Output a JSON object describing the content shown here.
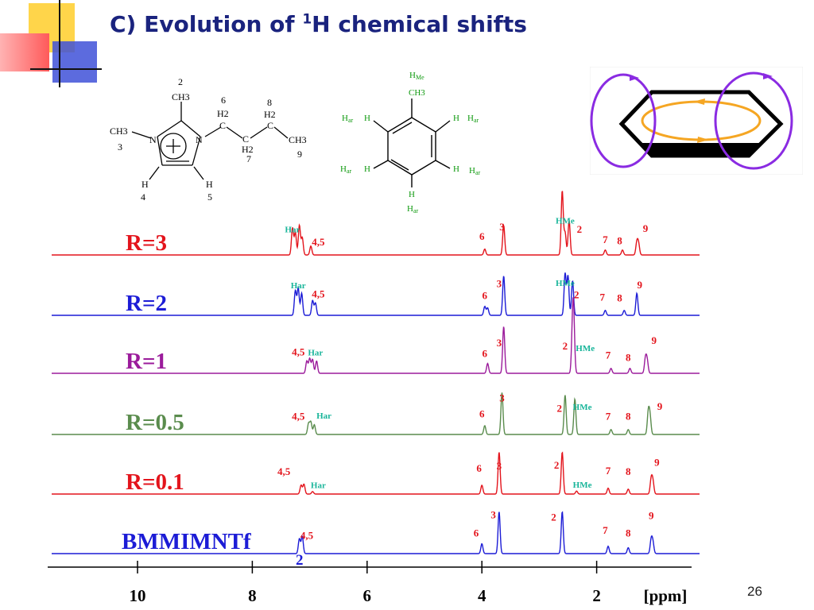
{
  "slide": {
    "title_prefix": "C) Evolution of ",
    "title_sup": "1",
    "title_suffix": "H chemical shifts",
    "page_number": "26"
  },
  "colors": {
    "title": "#1a237e",
    "deco_yellow": "#ffd54a",
    "deco_blue": "#3f51d8",
    "deco_red": "#ff5a5a",
    "ring_current": "#8a2be2",
    "ring_inner": "#f5a623",
    "label_red": "#e3141c",
    "label_teal": "#19b59a",
    "toluene_green": "#109a10"
  },
  "bmim_structure": {
    "atoms": {
      "c2": "CH3",
      "c2_num": "2",
      "c6": "6",
      "c6_h": "H2",
      "c6_c": "C",
      "c8": "8",
      "c8_h": "H2",
      "c8_c": "C",
      "c7_c": "C",
      "c7_h": "H2",
      "c7": "7",
      "c9": "CH3",
      "c9_num": "9",
      "c3": "CH3",
      "c3_num": "3",
      "n_left": "N",
      "n_right": "N",
      "h4": "H",
      "h4_num": "4",
      "h5": "H",
      "h5_num": "5"
    }
  },
  "toluene_structure": {
    "atoms": {
      "hme": "H",
      "hme_sub": "Me",
      "ch3": "CH3",
      "h_tl": "H",
      "h_tr": "H",
      "h_bl": "H",
      "h_br": "H",
      "h_b": "H",
      "har": "H",
      "har_sub": "ar"
    }
  },
  "chart_data": {
    "type": "line",
    "xlabel": "[ppm]",
    "x_ticks": [
      "10",
      "8",
      "6",
      "4",
      "2"
    ],
    "x_tick_values": [
      10,
      8,
      6,
      4,
      2
    ],
    "x_reversed": true,
    "series": [
      {
        "name": "R=3",
        "color": "#e3141c",
        "peaks": [
          [
            7.3,
            0.55
          ],
          [
            7.25,
            0.45
          ],
          [
            7.18,
            0.6
          ],
          [
            7.13,
            0.35
          ],
          [
            6.98,
            0.18
          ],
          [
            3.95,
            0.12
          ],
          [
            3.62,
            0.6
          ],
          [
            2.6,
            1.3
          ],
          [
            2.55,
            0.45
          ],
          [
            2.48,
            0.7
          ],
          [
            1.85,
            0.1
          ],
          [
            1.55,
            0.1
          ],
          [
            1.3,
            0.25
          ],
          [
            1.27,
            0.22
          ]
        ],
        "labels": [
          {
            "text": "Har",
            "x": 7.3,
            "h": 0.46,
            "color": "#19b59a",
            "size": "small"
          },
          {
            "text": "4,5",
            "x": 6.85,
            "h": 0.19,
            "color": "#e3141c"
          },
          {
            "text": "6",
            "x": 4.0,
            "h": 0.31,
            "color": "#e3141c"
          },
          {
            "text": "3",
            "x": 3.65,
            "h": 0.5,
            "color": "#e3141c"
          },
          {
            "text": "HMe",
            "x": 2.55,
            "h": 0.64,
            "color": "#19b59a",
            "size": "small"
          },
          {
            "text": "2",
            "x": 2.3,
            "h": 0.45,
            "color": "#e3141c"
          },
          {
            "text": "7",
            "x": 1.85,
            "h": 0.24,
            "color": "#e3141c"
          },
          {
            "text": "8",
            "x": 1.6,
            "h": 0.22,
            "color": "#e3141c"
          },
          {
            "text": "9",
            "x": 1.15,
            "h": 0.47,
            "color": "#e3141c"
          }
        ],
        "series_label": "R=3"
      },
      {
        "name": "R=2",
        "color": "#1c1cd6",
        "peaks": [
          [
            7.25,
            0.5
          ],
          [
            7.2,
            0.55
          ],
          [
            7.14,
            0.45
          ],
          [
            6.95,
            0.3
          ],
          [
            6.9,
            0.25
          ],
          [
            3.95,
            0.18
          ],
          [
            3.9,
            0.15
          ],
          [
            3.62,
            0.8
          ],
          [
            2.55,
            0.85
          ],
          [
            2.5,
            0.8
          ],
          [
            2.42,
            0.7
          ],
          [
            1.85,
            0.1
          ],
          [
            1.52,
            0.1
          ],
          [
            1.3,
            0.45
          ]
        ],
        "labels": [
          {
            "text": "Har",
            "x": 7.2,
            "h": 0.55,
            "color": "#19b59a",
            "size": "small"
          },
          {
            "text": "4,5",
            "x": 6.85,
            "h": 0.36,
            "color": "#e3141c"
          },
          {
            "text": "6",
            "x": 3.95,
            "h": 0.33,
            "color": "#e3141c"
          },
          {
            "text": "3",
            "x": 3.7,
            "h": 0.57,
            "color": "#e3141c"
          },
          {
            "text": "HMe",
            "x": 2.55,
            "h": 0.6,
            "color": "#19b59a",
            "size": "small"
          },
          {
            "text": "2",
            "x": 2.35,
            "h": 0.35,
            "color": "#e3141c"
          },
          {
            "text": "7",
            "x": 1.9,
            "h": 0.3,
            "color": "#e3141c"
          },
          {
            "text": "8",
            "x": 1.6,
            "h": 0.28,
            "color": "#e3141c"
          },
          {
            "text": "9",
            "x": 1.25,
            "h": 0.55,
            "color": "#e3141c"
          }
        ],
        "series_label": "R=2"
      },
      {
        "name": "R=1",
        "color": "#9b1b9b",
        "peaks": [
          [
            7.05,
            0.25
          ],
          [
            7.0,
            0.3
          ],
          [
            6.95,
            0.28
          ],
          [
            6.88,
            0.25
          ],
          [
            3.9,
            0.2
          ],
          [
            3.62,
            0.95
          ],
          [
            2.42,
            0.85
          ],
          [
            2.4,
            0.95
          ],
          [
            1.75,
            0.1
          ],
          [
            1.42,
            0.1
          ],
          [
            1.15,
            0.3
          ],
          [
            1.12,
            0.25
          ]
        ],
        "labels": [
          {
            "text": "4,5",
            "x": 7.2,
            "h": 0.36,
            "color": "#e3141c"
          },
          {
            "text": "Har",
            "x": 6.9,
            "h": 0.36,
            "color": "#19b59a",
            "size": "small"
          },
          {
            "text": "6",
            "x": 3.95,
            "h": 0.33,
            "color": "#e3141c"
          },
          {
            "text": "3",
            "x": 3.7,
            "h": 0.55,
            "color": "#e3141c"
          },
          {
            "text": "2",
            "x": 2.55,
            "h": 0.48,
            "color": "#e3141c"
          },
          {
            "text": "HMe",
            "x": 2.2,
            "h": 0.45,
            "color": "#19b59a",
            "size": "small"
          },
          {
            "text": "7",
            "x": 1.8,
            "h": 0.3,
            "color": "#e3141c"
          },
          {
            "text": "8",
            "x": 1.45,
            "h": 0.25,
            "color": "#e3141c"
          },
          {
            "text": "9",
            "x": 1.0,
            "h": 0.6,
            "color": "#e3141c"
          }
        ],
        "series_label": "R=1"
      },
      {
        "name": "R=0.5",
        "color": "#5a8c4d",
        "peaks": [
          [
            7.02,
            0.22
          ],
          [
            6.98,
            0.25
          ],
          [
            6.92,
            0.2
          ],
          [
            3.95,
            0.18
          ],
          [
            3.65,
            0.85
          ],
          [
            2.55,
            0.8
          ],
          [
            2.38,
            0.72
          ],
          [
            1.75,
            0.1
          ],
          [
            1.45,
            0.1
          ],
          [
            1.1,
            0.45
          ],
          [
            1.07,
            0.35
          ]
        ],
        "labels": [
          {
            "text": "4,5",
            "x": 7.2,
            "h": 0.3,
            "color": "#e3141c"
          },
          {
            "text": "Har",
            "x": 6.75,
            "h": 0.32,
            "color": "#19b59a",
            "size": "small"
          },
          {
            "text": "6",
            "x": 4.0,
            "h": 0.35,
            "color": "#e3141c"
          },
          {
            "text": "3",
            "x": 3.65,
            "h": 0.67,
            "color": "#e3141c"
          },
          {
            "text": "2",
            "x": 2.65,
            "h": 0.46,
            "color": "#e3141c"
          },
          {
            "text": "HMe",
            "x": 2.25,
            "h": 0.5,
            "color": "#19b59a",
            "size": "small"
          },
          {
            "text": "7",
            "x": 1.8,
            "h": 0.3,
            "color": "#e3141c"
          },
          {
            "text": "8",
            "x": 1.45,
            "h": 0.3,
            "color": "#e3141c"
          },
          {
            "text": "9",
            "x": 0.9,
            "h": 0.5,
            "color": "#e3141c"
          }
        ],
        "series_label": "R=0.5"
      },
      {
        "name": "R=0.1",
        "color": "#e3141c",
        "peaks": [
          [
            7.15,
            0.18
          ],
          [
            7.1,
            0.2
          ],
          [
            6.95,
            0.05
          ],
          [
            4.0,
            0.18
          ],
          [
            3.7,
            0.85
          ],
          [
            2.6,
            0.85
          ],
          [
            2.35,
            0.06
          ],
          [
            1.8,
            0.12
          ],
          [
            1.45,
            0.1
          ],
          [
            1.05,
            0.3
          ],
          [
            1.02,
            0.25
          ]
        ],
        "labels": [
          {
            "text": "4,5",
            "x": 7.45,
            "h": 0.39,
            "color": "#e3141c"
          },
          {
            "text": "Har",
            "x": 6.85,
            "h": 0.12,
            "color": "#19b59a",
            "size": "small"
          },
          {
            "text": "6",
            "x": 4.05,
            "h": 0.45,
            "color": "#e3141c"
          },
          {
            "text": "3",
            "x": 3.7,
            "h": 0.5,
            "color": "#e3141c"
          },
          {
            "text": "2",
            "x": 2.7,
            "h": 0.52,
            "color": "#e3141c"
          },
          {
            "text": "HMe",
            "x": 2.25,
            "h": 0.13,
            "color": "#19b59a",
            "size": "small"
          },
          {
            "text": "7",
            "x": 1.8,
            "h": 0.4,
            "color": "#e3141c"
          },
          {
            "text": "8",
            "x": 1.45,
            "h": 0.39,
            "color": "#e3141c"
          },
          {
            "text": "9",
            "x": 0.95,
            "h": 0.57,
            "color": "#e3141c"
          }
        ],
        "series_label": "R=0.1"
      },
      {
        "name": "BMMIMNTf2",
        "color": "#1c1cd6",
        "peaks": [
          [
            7.18,
            0.3
          ],
          [
            7.13,
            0.35
          ],
          [
            4.0,
            0.2
          ],
          [
            3.7,
            0.85
          ],
          [
            2.6,
            0.85
          ],
          [
            1.8,
            0.15
          ],
          [
            1.45,
            0.12
          ],
          [
            1.05,
            0.28
          ],
          [
            1.02,
            0.22
          ]
        ],
        "labels": [
          {
            "text": "4,5",
            "x": 7.05,
            "h": 0.3,
            "color": "#e3141c"
          },
          {
            "text": "6",
            "x": 4.1,
            "h": 0.35,
            "color": "#e3141c"
          },
          {
            "text": "3",
            "x": 3.8,
            "h": 0.72,
            "color": "#e3141c"
          },
          {
            "text": "2",
            "x": 2.75,
            "h": 0.67,
            "color": "#e3141c"
          },
          {
            "text": "7",
            "x": 1.85,
            "h": 0.4,
            "color": "#e3141c"
          },
          {
            "text": "8",
            "x": 1.45,
            "h": 0.35,
            "color": "#e3141c"
          },
          {
            "text": "9",
            "x": 1.05,
            "h": 0.7,
            "color": "#e3141c"
          }
        ],
        "series_label": "BMMIMNTf",
        "series_label_sub": "2"
      }
    ]
  }
}
